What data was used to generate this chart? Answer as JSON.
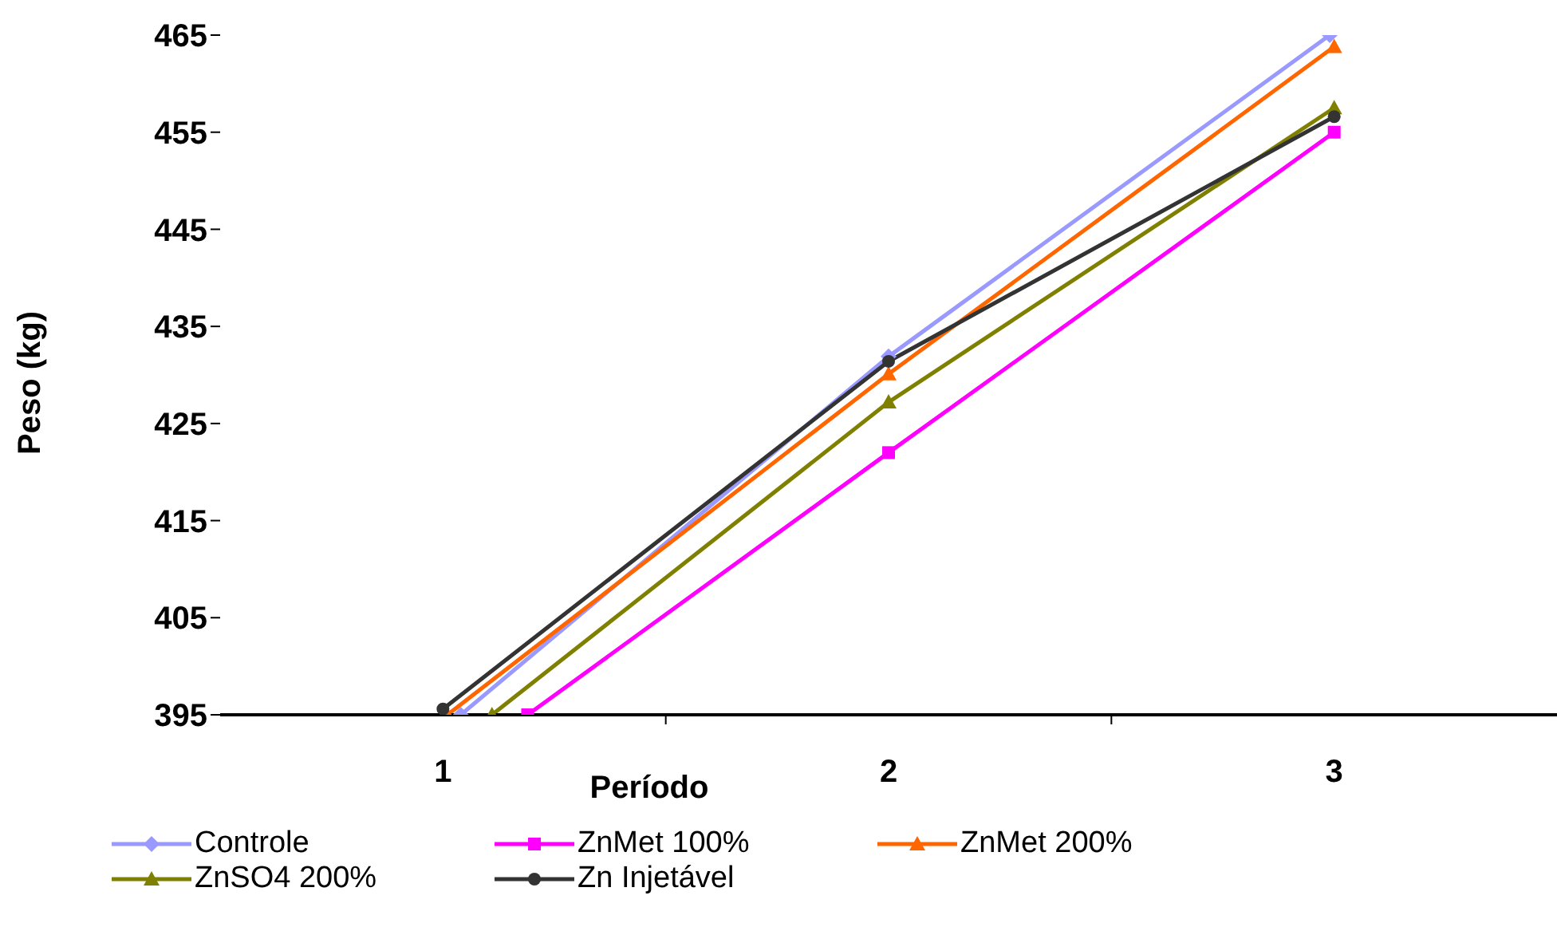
{
  "chart_data": {
    "type": "line",
    "xlabel": "Período",
    "ylabel": "Peso (kg)",
    "xlim": [
      0.5,
      3.5
    ],
    "xticks": [
      1,
      {
        "value": 1.5,
        "label": null
      },
      2,
      {
        "value": 2.5,
        "label": null
      },
      3
    ],
    "ylim": [
      395,
      465
    ],
    "yticks": [
      395,
      405,
      415,
      425,
      435,
      445,
      455,
      465
    ],
    "grid": false,
    "legend": "bottom",
    "series": [
      {
        "name": "Controle",
        "color": "#9999ff",
        "marker": "diamond",
        "x": [
          1.04,
          2,
          2.99
        ],
        "values": [
          395,
          431.9,
          465
        ]
      },
      {
        "name": "ZnMet 100%",
        "color": "#ff00ff",
        "marker": "square",
        "x": [
          1.19,
          2,
          3
        ],
        "values": [
          395,
          422.0,
          455.0
        ]
      },
      {
        "name": "ZnMet 200%",
        "color": "#ff6600",
        "marker": "triangle",
        "x": [
          1.01,
          2,
          3
        ],
        "values": [
          395,
          430.1,
          463.8
        ]
      },
      {
        "name": "ZnSO4 200%",
        "color": "#808000",
        "marker": "triangle",
        "x": [
          1.11,
          2,
          3
        ],
        "values": [
          395,
          427.2,
          457.5
        ]
      },
      {
        "name": "Zn Injetável",
        "color": "#333333",
        "marker": "circle",
        "x": [
          1,
          2,
          3
        ],
        "values": [
          395.6,
          431.4,
          456.6
        ]
      }
    ]
  }
}
